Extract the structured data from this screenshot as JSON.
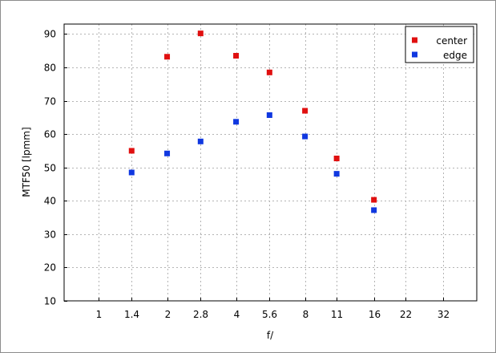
{
  "chart_data": {
    "type": "scatter",
    "xlabel": "f/",
    "ylabel": "MTF50 [lpmm]",
    "x_scale": "log2",
    "xticks": [
      "1",
      "1.4",
      "2",
      "2.8",
      "4",
      "5.6",
      "8",
      "11",
      "16",
      "22",
      "32"
    ],
    "xlim": [
      "0.71",
      "45"
    ],
    "ylim": [
      10,
      93
    ],
    "yticks": [
      10,
      20,
      30,
      40,
      50,
      60,
      70,
      80,
      90
    ],
    "grid": true,
    "legend_position": "top-right",
    "series": [
      {
        "name": "center",
        "color": "#e01010",
        "points": [
          {
            "x": "1.4",
            "y": 55
          },
          {
            "x": "2",
            "y": 83.2
          },
          {
            "x": "2.8",
            "y": 90.2
          },
          {
            "x": "4",
            "y": 83.5
          },
          {
            "x": "5.6",
            "y": 78.5
          },
          {
            "x": "8",
            "y": 67
          },
          {
            "x": "11",
            "y": 52.7
          },
          {
            "x": "16",
            "y": 40.3
          }
        ]
      },
      {
        "name": "edge",
        "color": "#1038e0",
        "points": [
          {
            "x": "1.4",
            "y": 48.5
          },
          {
            "x": "2",
            "y": 54.2
          },
          {
            "x": "2.8",
            "y": 57.8
          },
          {
            "x": "4",
            "y": 63.7
          },
          {
            "x": "5.6",
            "y": 65.7
          },
          {
            "x": "8",
            "y": 59.3
          },
          {
            "x": "11",
            "y": 48.1
          },
          {
            "x": "16",
            "y": 37.2
          }
        ]
      }
    ]
  }
}
